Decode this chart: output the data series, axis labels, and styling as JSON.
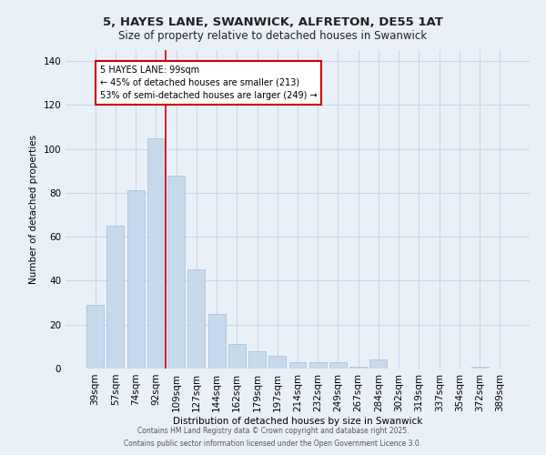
{
  "title": "5, HAYES LANE, SWANWICK, ALFRETON, DE55 1AT",
  "subtitle": "Size of property relative to detached houses in Swanwick",
  "xlabel": "Distribution of detached houses by size in Swanwick",
  "ylabel": "Number of detached properties",
  "categories": [
    "39sqm",
    "57sqm",
    "74sqm",
    "92sqm",
    "109sqm",
    "127sqm",
    "144sqm",
    "162sqm",
    "179sqm",
    "197sqm",
    "214sqm",
    "232sqm",
    "249sqm",
    "267sqm",
    "284sqm",
    "302sqm",
    "319sqm",
    "337sqm",
    "354sqm",
    "372sqm",
    "389sqm"
  ],
  "values": [
    29,
    65,
    81,
    105,
    88,
    45,
    25,
    11,
    8,
    6,
    3,
    3,
    3,
    1,
    4,
    0,
    0,
    0,
    0,
    1,
    0
  ],
  "bar_color": "#c6d9ec",
  "bar_edge_color": "#aac4dc",
  "grid_color": "#c8d8e8",
  "background_color": "#eaf0f8",
  "annotation_text": "5 HAYES LANE: 99sqm\n← 45% of detached houses are smaller (213)\n53% of semi-detached houses are larger (249) →",
  "annotation_box_color": "#ffffff",
  "annotation_box_edge_color": "#cc0000",
  "red_line_color": "#cc0000",
  "red_line_x": 3.5,
  "ylim": [
    0,
    145
  ],
  "yticks": [
    0,
    20,
    40,
    60,
    80,
    100,
    120,
    140
  ],
  "footer_line1": "Contains HM Land Registry data © Crown copyright and database right 2025.",
  "footer_line2": "Contains public sector information licensed under the Open Government Licence 3.0."
}
